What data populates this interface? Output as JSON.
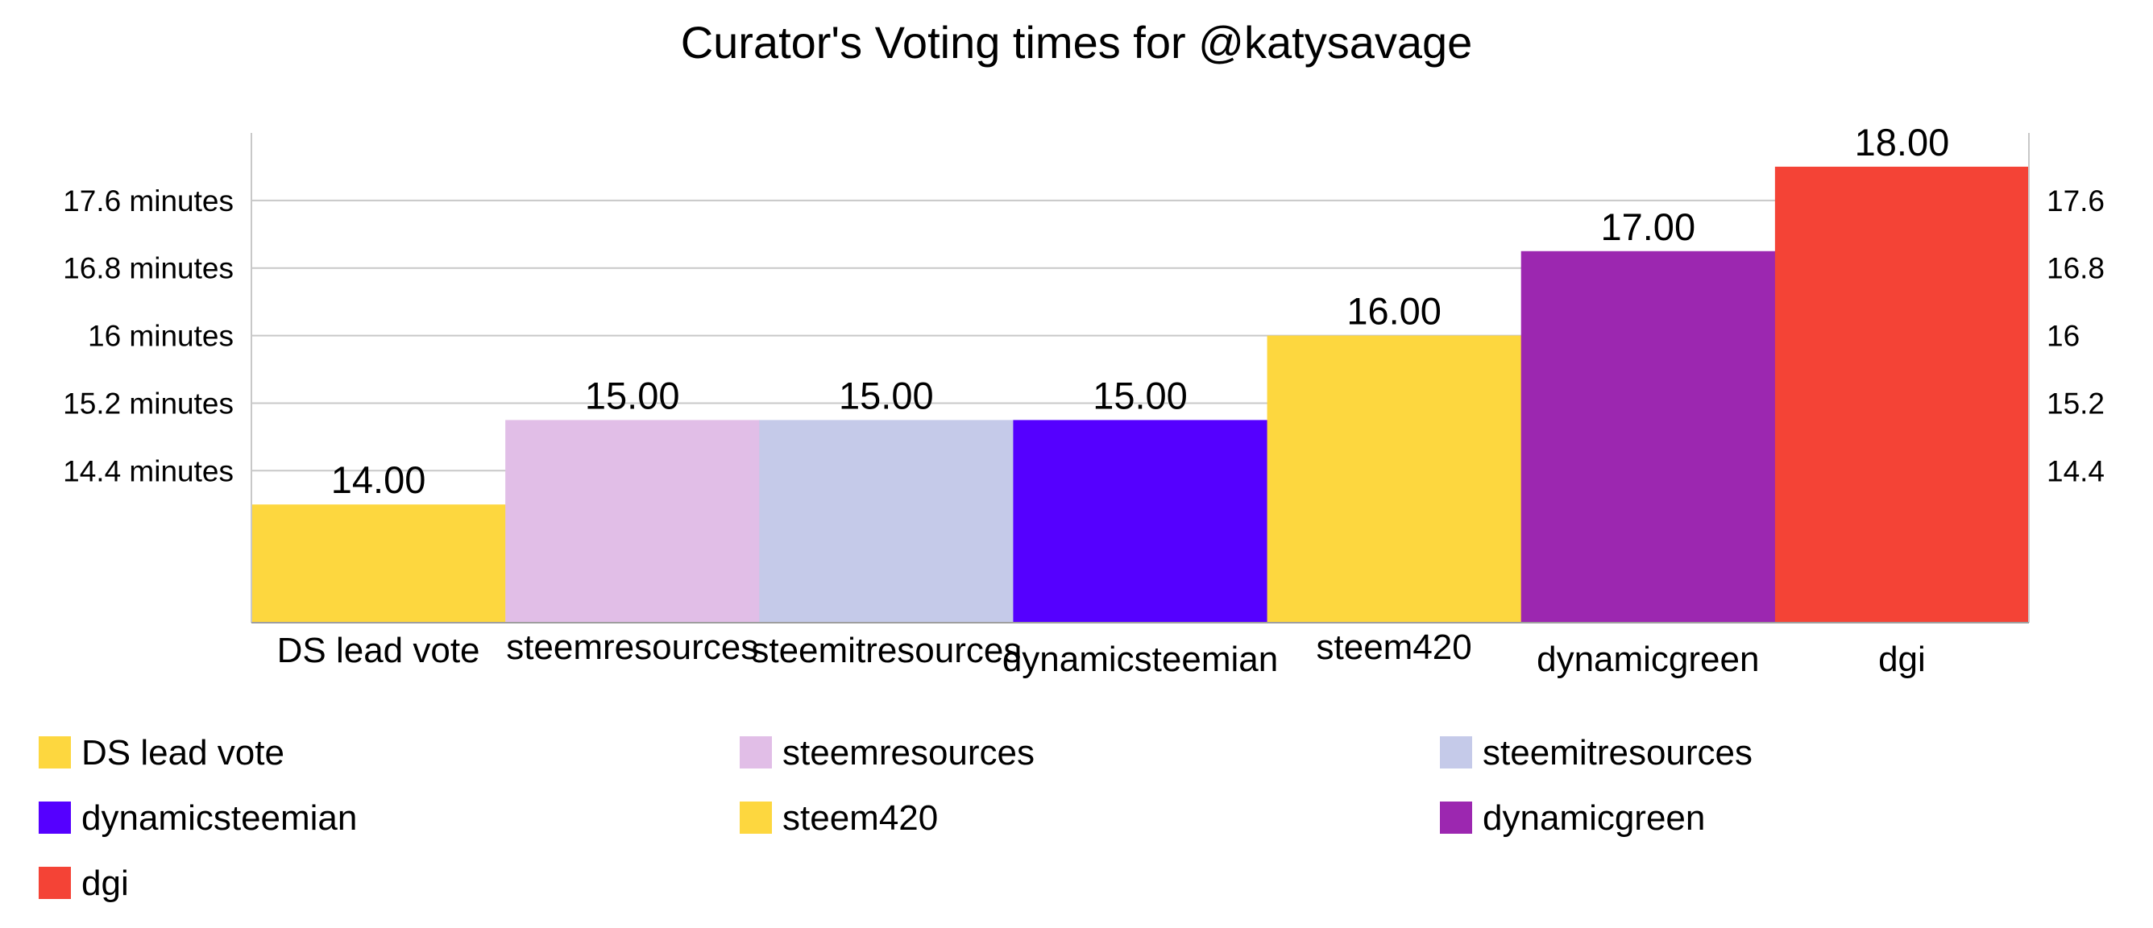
{
  "chart_data": {
    "type": "bar",
    "title": "Curator's Voting times for @katysavage",
    "xlabel": "",
    "ylabel": "",
    "categories": [
      "DS lead vote",
      "steemresources",
      "steemitresources",
      "dynamicsteemian",
      "steem420",
      "dynamicgreen",
      "dgi"
    ],
    "values": [
      14,
      15,
      15,
      15,
      16,
      17,
      18
    ],
    "data_labels": [
      "14.00",
      "15.00",
      "15.00",
      "15.00",
      "16.00",
      "17.00",
      "18.00"
    ],
    "colors": [
      "#fdd73f",
      "#e1bee7",
      "#c5cae9",
      "#5500ff",
      "#fdd73f",
      "#9c27b0",
      "#f44336"
    ],
    "ylim": [
      12.6,
      18.4
    ],
    "y_ticks": [
      14.4,
      15.2,
      16,
      16.8,
      17.6
    ],
    "y_tick_labels_left": [
      "14.4 minutes",
      "15.2 minutes",
      "16 minutes",
      "16.8 minutes",
      "17.6 minutes"
    ],
    "y_tick_labels_right": [
      "14.4",
      "15.2",
      "16",
      "16.8",
      "17.6"
    ],
    "grid": true,
    "legend_position": "bottom",
    "legend": [
      "DS lead vote",
      "steemresources",
      "steemitresources",
      "dynamicsteemian",
      "steem420",
      "dynamicgreen",
      "dgi"
    ]
  }
}
